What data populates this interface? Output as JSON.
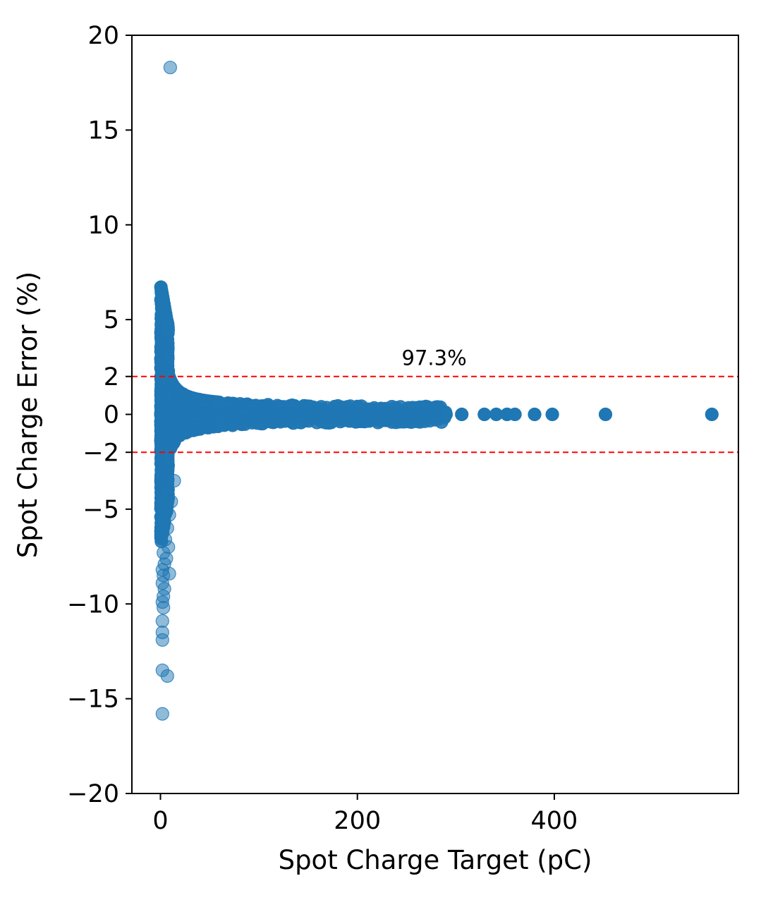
{
  "chart_data": {
    "type": "scatter",
    "title": "",
    "xlabel": "Spot Charge Target (pC)",
    "ylabel": "Spot Charge Error (%)",
    "xlim": [
      -29,
      587
    ],
    "ylim": [
      -20,
      20
    ],
    "xticks": [
      0,
      200,
      400
    ],
    "xtick_labels": [
      "0",
      "200",
      "400"
    ],
    "yticks": [
      -20,
      -15,
      -10,
      -5,
      -2,
      0,
      2,
      5,
      10,
      15,
      20
    ],
    "ytick_labels": [
      "−20",
      "−15",
      "−10",
      "−5",
      "−2",
      "0",
      "2",
      "5",
      "10",
      "15",
      "20"
    ],
    "grid": false,
    "legend": "none",
    "series_color": "#1f77b4",
    "reference_lines": [
      {
        "y": 2,
        "color": "#ff0000",
        "style": "dashed"
      },
      {
        "y": -2,
        "color": "#ff0000",
        "style": "dashed"
      }
    ],
    "annotations": [
      {
        "text": "97.3%",
        "x": 278,
        "y": 2.6
      }
    ],
    "outliers": [
      {
        "x": 10,
        "y": 18.3
      },
      {
        "x": 2,
        "y": -15.8
      },
      {
        "x": 7,
        "y": -13.8
      },
      {
        "x": 2,
        "y": -13.5
      },
      {
        "x": 2,
        "y": -11.9
      },
      {
        "x": 2,
        "y": -11.5
      },
      {
        "x": 2,
        "y": -10.9
      },
      {
        "x": 3,
        "y": -10.2
      },
      {
        "x": 2,
        "y": -9.9
      },
      {
        "x": 3,
        "y": -9.6
      },
      {
        "x": 4,
        "y": -9.2
      },
      {
        "x": 2,
        "y": -8.9
      },
      {
        "x": 3,
        "y": -8.5
      },
      {
        "x": 9,
        "y": -8.4
      },
      {
        "x": 2,
        "y": -8.2
      },
      {
        "x": 4,
        "y": -7.9
      },
      {
        "x": 6,
        "y": -7.6
      },
      {
        "x": 3,
        "y": -7.3
      },
      {
        "x": 8,
        "y": -7.0
      },
      {
        "x": 5,
        "y": -6.6
      },
      {
        "x": 7,
        "y": -6.0
      },
      {
        "x": 9,
        "y": -5.3
      },
      {
        "x": 11,
        "y": -4.6
      },
      {
        "x": 14,
        "y": -3.5
      }
    ],
    "large_x_points": [
      {
        "x": 290,
        "y": 0
      },
      {
        "x": 306,
        "y": 0
      },
      {
        "x": 329,
        "y": 0
      },
      {
        "x": 341,
        "y": 0
      },
      {
        "x": 352,
        "y": 0
      },
      {
        "x": 360,
        "y": 0
      },
      {
        "x": 380,
        "y": 0
      },
      {
        "x": 398,
        "y": 0
      },
      {
        "x": 452,
        "y": 0
      },
      {
        "x": 560,
        "y": 0
      }
    ],
    "dense_band": {
      "description_points": [
        {
          "x": 1,
          "y": 7.0
        },
        {
          "x": 3,
          "y": 6.0
        },
        {
          "x": 6,
          "y": 4.0
        },
        {
          "x": 10,
          "y": 2.0
        },
        {
          "x": 20,
          "y": 1.0
        },
        {
          "x": 50,
          "y": 0.5
        },
        {
          "x": 100,
          "y": 0.3
        },
        {
          "x": 200,
          "y": 0.2
        },
        {
          "x": 290,
          "y": 0.1
        }
      ]
    }
  }
}
